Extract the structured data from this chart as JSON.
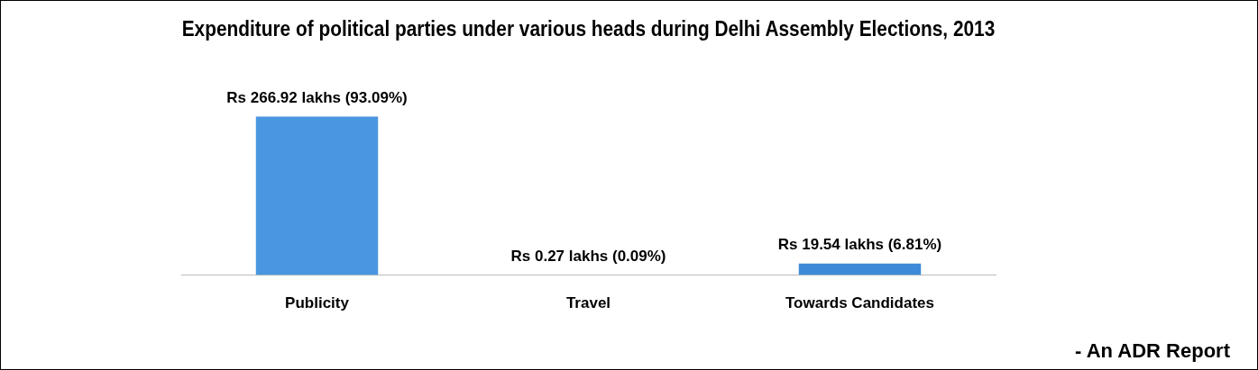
{
  "chart_data": {
    "type": "bar",
    "title": "Expenditure of political parties under various heads during Delhi Assembly Elections, 2013",
    "categories": [
      "Publicity",
      "Travel",
      "Towards Candidates"
    ],
    "values": [
      266.92,
      0.27,
      19.54
    ],
    "colors": [
      "#4a96e0",
      "#1f3c60",
      "#3d8bd8"
    ],
    "value_labels": [
      "Rs 266.92 lakhs (93.09%)",
      "Rs 0.27 lakhs (0.09%)",
      "Rs 19.54 lakhs (6.81%)"
    ],
    "annotations": [
      "- An ADR Report"
    ],
    "grid": false,
    "legend": false
  }
}
